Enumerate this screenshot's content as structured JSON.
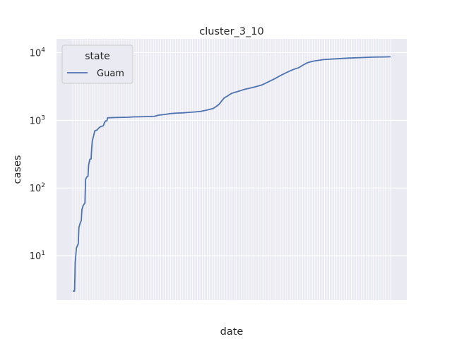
{
  "chart_data": {
    "type": "line",
    "title": "cluster_3_10",
    "xlabel": "date",
    "ylabel": "cases",
    "y_scale": "log",
    "ylim": [
      2.2,
      16000
    ],
    "y_ticks": [
      {
        "value": 10,
        "base": "10",
        "exp": "1"
      },
      {
        "value": 100,
        "base": "10",
        "exp": "2"
      },
      {
        "value": 1000,
        "base": "10",
        "exp": "3"
      },
      {
        "value": 10000,
        "base": "10",
        "exp": "4"
      }
    ],
    "grid": true,
    "background": "#eaeaf2",
    "legend": {
      "title": "state",
      "position": "top-left"
    },
    "series": [
      {
        "name": "Guam",
        "color": "#4c72b0",
        "points": [
          [
            0,
            3
          ],
          [
            1.5,
            3
          ],
          [
            2,
            8
          ],
          [
            3,
            13
          ],
          [
            4.5,
            15
          ],
          [
            5,
            26
          ],
          [
            6,
            30
          ],
          [
            7,
            33
          ],
          [
            7.5,
            48
          ],
          [
            8.5,
            55
          ],
          [
            10,
            60
          ],
          [
            10.5,
            135
          ],
          [
            11.5,
            145
          ],
          [
            12.5,
            150
          ],
          [
            13,
            220
          ],
          [
            14,
            265
          ],
          [
            15,
            270
          ],
          [
            15.5,
            380
          ],
          [
            16,
            500
          ],
          [
            17,
            580
          ],
          [
            18,
            700
          ],
          [
            19,
            710
          ],
          [
            20,
            720
          ],
          [
            21,
            760
          ],
          [
            22,
            790
          ],
          [
            23,
            810
          ],
          [
            24,
            820
          ],
          [
            25,
            830
          ],
          [
            26,
            930
          ],
          [
            27,
            980
          ],
          [
            28,
            985
          ],
          [
            28.5,
            1090
          ],
          [
            35,
            1100
          ],
          [
            45,
            1110
          ],
          [
            50,
            1125
          ],
          [
            60,
            1135
          ],
          [
            67,
            1150
          ],
          [
            70,
            1190
          ],
          [
            75,
            1220
          ],
          [
            80,
            1260
          ],
          [
            85,
            1280
          ],
          [
            90,
            1290
          ],
          [
            95,
            1310
          ],
          [
            100,
            1330
          ],
          [
            105,
            1360
          ],
          [
            110,
            1420
          ],
          [
            115,
            1500
          ],
          [
            118,
            1630
          ],
          [
            120,
            1750
          ],
          [
            122,
            1950
          ],
          [
            124,
            2150
          ],
          [
            126,
            2250
          ],
          [
            128,
            2380
          ],
          [
            130,
            2500
          ],
          [
            133,
            2600
          ],
          [
            136,
            2700
          ],
          [
            140,
            2850
          ],
          [
            145,
            3000
          ],
          [
            150,
            3150
          ],
          [
            155,
            3350
          ],
          [
            160,
            3700
          ],
          [
            165,
            4100
          ],
          [
            170,
            4600
          ],
          [
            175,
            5100
          ],
          [
            180,
            5600
          ],
          [
            185,
            6000
          ],
          [
            188,
            6500
          ],
          [
            192,
            7100
          ],
          [
            197,
            7500
          ],
          [
            205,
            7900
          ],
          [
            215,
            8100
          ],
          [
            225,
            8300
          ],
          [
            235,
            8450
          ],
          [
            245,
            8580
          ],
          [
            255,
            8650
          ],
          [
            260,
            8700
          ]
        ]
      }
    ],
    "x_range": [
      0,
      260
    ]
  }
}
